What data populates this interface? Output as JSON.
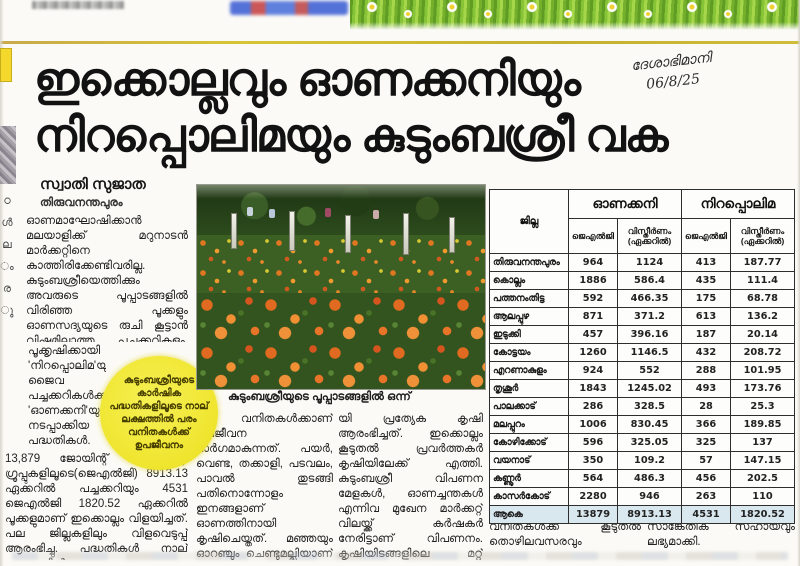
{
  "annotation": {
    "line1": "ദേശാഭിമാനി",
    "line2": "06/8/25"
  },
  "headline": {
    "line1": "ഇക്കൊല്ലവും ഓണക്കനിയും",
    "line2": "നിറപ്പൊലിമയും കുടുംബശ്രീ വക"
  },
  "byline": {
    "author": "സ്വാതി സുജാത",
    "dateline": "തിരുവനന്തപുരം"
  },
  "article": {
    "col1_para1": "ഓണമാഘോഷിക്കാൻ മലയാളിക്ക് മറുനാടൻ മാർക്കറ്റിനെ കാത്തിരിക്കേണ്ടിവരില്ല. കുടുംബശ്രീയെത്തിക്കും അവരുടെ പൂപ്പാടങ്ങളിൽ വിരിഞ്ഞ പൂക്കളും ഓണസദ്യയുടെ രുചി കൂട്ടാൻ വിഷമില്ലാത്ത പച്ചക്കറികളും. 10,733.65 ഏക്കറിലാണ് കുടുംബശ്രീ പ്രവർത്തകർ ഇക്കൊല്ലം കൃഷിയിറക്കിയത്.",
    "col1_para2": "പൂക്കൃഷിക്കായി 'നിറപ്പൊലിമ'യും ജൈവ പച്ചക്കറികൾക്കായി 'ഓണക്കനി'യുമാണ് നടപ്പാക്കിയ പദ്ധതികൾ. സംസ്ഥാനത്തെ",
    "col1_para3": "13,879 ജോയിന്റ് ലയബിലിറ്റി ഗ്രൂപ്പുകളിലൂടെ(ജെഎൽജി) 8913.13 ഏക്കറിൽ പച്ചക്കറിയും 4531 ജെഎൽജി 1820.52 ഏക്കറിൽ പൂക്കളുമാണ് ഇക്കൊല്ലം വിളയിച്ചത്. പല ജില്ലകളിലും വിളവെടുപ്പ് ആരംഭിച്ചു. പദ്ധതികൾ നാല് ലക്ഷത്തിൽപ്പ",
    "col2": "രം വനിതകൾക്കാണ് ഉപജീവന മാർഗമാകുന്നത്. പയർ, വെണ്ട, തക്കാളി, പടവലം, പാവൽ തുടങ്ങി പതിനൊന്നോളം ഇനങ്ങളാണ് ഓണത്തിനായി കൃഷിചെയ്തത്. മഞ്ഞയും ഓറഞ്ചും ചെണ്ടുമല്ലിയാണ് പ്രധാന പൂവിനം. കഴിഞ്ഞ വർഷമാണ് നിറപ്പൊലിമ, ഓണക്കനി എന്നീ പേരുകളിൽ ഓണത്തിനാ",
    "col3": "യി പ്രത്യേക കൃഷി ആരംഭിച്ചത്. ഇക്കൊല്ലം കൂടുതൽ പ്രവർത്തകർ കൃഷിയിലേക്ക് എത്തി. കുടുംബശ്രീ വിപണന മേളകൾ, ഓണച്ചന്തകൾ എന്നിവ മുഖേന മാർക്കറ്റ് വിലയ്ക്ക് കർഷകർ നേരിട്ടാണ് വിപണനം. കൃഷിയിടങ്ങളിലെ മറ്റ് വിളകളും സംരംഭകരുടെ ഉൽപ്പന്നങ്ങളും വിപണിയിലെത്തും. കുടുംബശ്രീയുടെ കീഴി",
    "col4": "ലുള്ള കർഷകരായ വനിതകൾക്ക് കൂടുതൽ തൊഴിലവസരവും വരുമാനവും ലഭ്യമാക്കുകയാണ്",
    "col5": "ലക്ഷ്യം. കൃഷിവകുപ്പിന്റെ സാങ്കേതിക സഹായവും ലഭ്യമാക്കി."
  },
  "highlight": {
    "text": "കുടുംബശ്രീയുടെ കാർഷിക പദ്ധതികളിലൂടെ നാല് ലക്ഷത്തിൽ പരം വനിതകൾക്ക് ഉപജീവനം",
    "bg": "#efe52e"
  },
  "photo": {
    "caption": "കുടുംബശ്രീയുടെ പൂപ്പാടങ്ങളിൽ ഒന്ന്"
  },
  "edge_fragments": "ഠ\nൾ\nല\nം\nര\nു",
  "table": {
    "district_header": "ജില്ല",
    "title_groups": [
      "ഓണക്കനി",
      "നിറപ്പൊലിമ"
    ],
    "sub_headers": [
      "ജെഎൽജി",
      "വിസ്തീർണം (ഏക്കറിൽ)",
      "ജെഎൽജി",
      "വിസ്തീർണം (ഏക്കറിൽ)"
    ],
    "rows": [
      [
        "തിരുവനന്തപുരം",
        "964",
        "1124",
        "413",
        "187.77"
      ],
      [
        "കൊല്ലം",
        "1886",
        "586.4",
        "435",
        "111.4"
      ],
      [
        "പത്തനംതിട്ട",
        "592",
        "466.35",
        "175",
        "68.78"
      ],
      [
        "ആലപ്പുഴ",
        "871",
        "371.2",
        "613",
        "136.2"
      ],
      [
        "ഇടുക്കി",
        "457",
        "396.16",
        "187",
        "20.14"
      ],
      [
        "കോട്ടയം",
        "1260",
        "1146.5",
        "432",
        "208.72"
      ],
      [
        "എറണാകുളം",
        "924",
        "552",
        "288",
        "101.95"
      ],
      [
        "തൃശൂർ",
        "1843",
        "1245.02",
        "493",
        "173.76"
      ],
      [
        "പാലക്കാട്",
        "286",
        "328.5",
        "28",
        "25.3"
      ],
      [
        "മലപ്പുറം",
        "1006",
        "830.45",
        "366",
        "189.85"
      ],
      [
        "കോഴിക്കോട്",
        "596",
        "325.05",
        "325",
        "137"
      ],
      [
        "വയനാട്",
        "350",
        "109.2",
        "57",
        "147.15"
      ],
      [
        "കണ്ണൂർ",
        "564",
        "486.3",
        "456",
        "202.5"
      ],
      [
        "കാസർകോട്",
        "2280",
        "946",
        "263",
        "110"
      ]
    ],
    "total_row": [
      "ആകെ",
      "13879",
      "8913.13",
      "4531",
      "1820.52"
    ],
    "total_row_bg": "#d9e7ef"
  }
}
